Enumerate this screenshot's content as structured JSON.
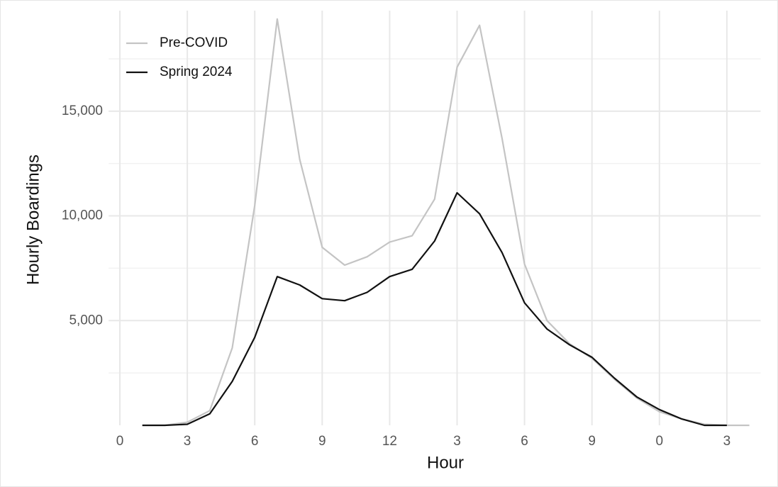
{
  "chart_data": {
    "type": "line",
    "x_label": "Hour",
    "y_label": "Hourly Boardings",
    "x": [
      1,
      2,
      3,
      4,
      5,
      6,
      7,
      8,
      9,
      10,
      11,
      12,
      13,
      14,
      15,
      16,
      17,
      18,
      19,
      20,
      21,
      22,
      23,
      24,
      25,
      26,
      27,
      28
    ],
    "series": [
      {
        "name": "Pre-COVID",
        "color": "#c4c4c4",
        "values": [
          0,
          0,
          150,
          700,
          3700,
          10500,
          19400,
          12700,
          8500,
          7650,
          8050,
          8750,
          9050,
          10800,
          17100,
          19100,
          13700,
          7700,
          5000,
          3900,
          3200,
          2200,
          1300,
          650,
          300,
          50,
          0,
          0
        ]
      },
      {
        "name": "Spring 2024",
        "color": "#111111",
        "values": [
          0,
          0,
          50,
          550,
          2100,
          4200,
          7100,
          6700,
          6050,
          5950,
          6350,
          7100,
          7450,
          8800,
          11100,
          10100,
          8250,
          5850,
          4600,
          3850,
          3250,
          2250,
          1350,
          750,
          300,
          0,
          0,
          null
        ]
      }
    ],
    "xlim": [
      -0.5,
      28.5
    ],
    "xticks": [
      0,
      3,
      6,
      9,
      12,
      {
        "value": 15,
        "label": "3"
      },
      {
        "value": 18,
        "label": "6"
      },
      {
        "value": 21,
        "label": "9"
      },
      {
        "value": 24,
        "label": "0"
      },
      {
        "value": 27,
        "label": "3"
      }
    ],
    "ylim": [
      0,
      19800
    ],
    "yticks": [
      {
        "value": 5000,
        "label": "5,000"
      },
      {
        "value": 10000,
        "label": "10,000"
      },
      {
        "value": 15000,
        "label": "15,000"
      }
    ],
    "y_minor_ticks": [
      2500,
      7500,
      12500,
      17500
    ],
    "grid": true,
    "legend": "top-left"
  }
}
